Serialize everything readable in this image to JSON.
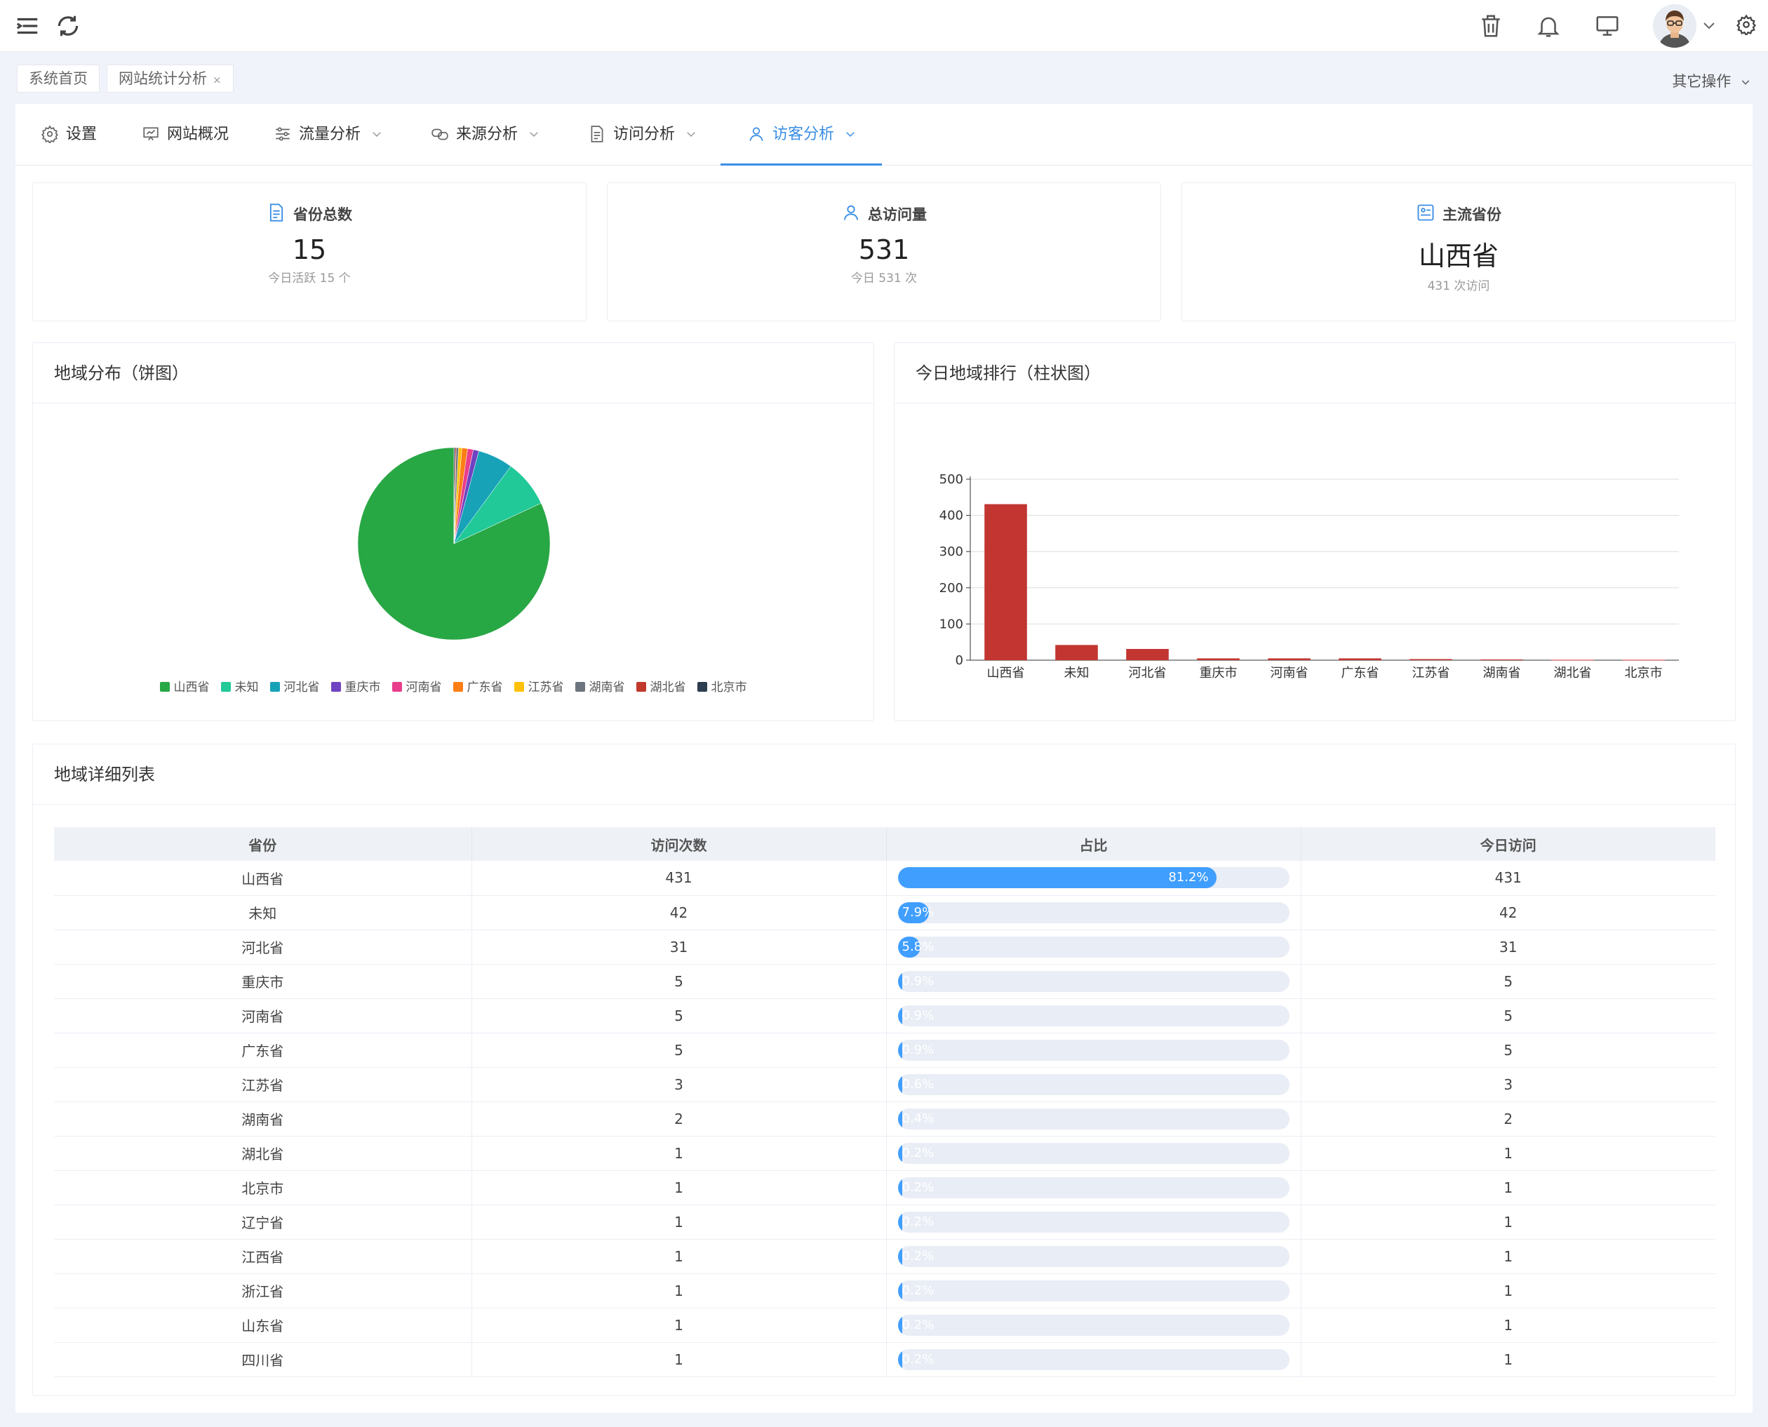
{
  "header": {
    "icons": [
      "menu-fold-icon",
      "refresh-icon",
      "trash-icon",
      "bell-icon",
      "monitor-icon",
      "avatar",
      "chevron-down-icon",
      "gear-icon"
    ]
  },
  "tags": {
    "home": "系统首页",
    "current": "网站统计分析",
    "close": "×",
    "other_ops": "其它操作"
  },
  "tabs": [
    {
      "label": "设置",
      "icon": "gear-icon"
    },
    {
      "label": "网站概况",
      "icon": "presentation-icon"
    },
    {
      "label": "流量分析",
      "icon": "sliders-icon"
    },
    {
      "label": "来源分析",
      "icon": "link-icon"
    },
    {
      "label": "访问分析",
      "icon": "document-icon"
    },
    {
      "label": "访客分析",
      "icon": "user-icon",
      "active": true
    }
  ],
  "stats": [
    {
      "title": "省份总数",
      "value": "15",
      "sub": "今日活跃 15 个",
      "icon": "document-icon"
    },
    {
      "title": "总访问量",
      "value": "531",
      "sub": "今日 531 次",
      "icon": "user-icon"
    },
    {
      "title": "主流省份",
      "value": "山西省",
      "sub": "431 次访问",
      "icon": "id-card-icon"
    }
  ],
  "pie_card": {
    "title": "地域分布（饼图）"
  },
  "bar_card": {
    "title": "今日地域排行（柱状图）"
  },
  "table_card": {
    "title": "地域详细列表",
    "columns": [
      "省份",
      "访问次数",
      "占比",
      "今日访问"
    ],
    "rows": [
      {
        "province": "山西省",
        "visits": "431",
        "pct": "81.2%",
        "ratio": 0.812,
        "today": "431"
      },
      {
        "province": "未知",
        "visits": "42",
        "pct": "7.9%",
        "ratio": 0.079,
        "today": "42"
      },
      {
        "province": "河北省",
        "visits": "31",
        "pct": "5.8%",
        "ratio": 0.058,
        "today": "31"
      },
      {
        "province": "重庆市",
        "visits": "5",
        "pct": "0.9%",
        "ratio": 0.009,
        "today": "5"
      },
      {
        "province": "河南省",
        "visits": "5",
        "pct": "0.9%",
        "ratio": 0.009,
        "today": "5"
      },
      {
        "province": "广东省",
        "visits": "5",
        "pct": "0.9%",
        "ratio": 0.009,
        "today": "5"
      },
      {
        "province": "江苏省",
        "visits": "3",
        "pct": "0.6%",
        "ratio": 0.006,
        "today": "3"
      },
      {
        "province": "湖南省",
        "visits": "2",
        "pct": "0.4%",
        "ratio": 0.004,
        "today": "2"
      },
      {
        "province": "湖北省",
        "visits": "1",
        "pct": "0.2%",
        "ratio": 0.002,
        "today": "1"
      },
      {
        "province": "北京市",
        "visits": "1",
        "pct": "0.2%",
        "ratio": 0.002,
        "today": "1"
      },
      {
        "province": "辽宁省",
        "visits": "1",
        "pct": "0.2%",
        "ratio": 0.002,
        "today": "1"
      },
      {
        "province": "江西省",
        "visits": "1",
        "pct": "0.2%",
        "ratio": 0.002,
        "today": "1"
      },
      {
        "province": "浙江省",
        "visits": "1",
        "pct": "0.2%",
        "ratio": 0.002,
        "today": "1"
      },
      {
        "province": "山东省",
        "visits": "1",
        "pct": "0.2%",
        "ratio": 0.002,
        "today": "1"
      },
      {
        "province": "四川省",
        "visits": "1",
        "pct": "0.2%",
        "ratio": 0.002,
        "today": "1"
      }
    ]
  },
  "chart_data": [
    {
      "type": "pie",
      "title": "",
      "categories": [
        "山西省",
        "未知",
        "河北省",
        "重庆市",
        "河南省",
        "广东省",
        "江苏省",
        "湖南省",
        "湖北省",
        "北京市"
      ],
      "values": [
        431,
        42,
        31,
        5,
        5,
        5,
        3,
        2,
        1,
        1
      ],
      "colors": [
        "#28a745",
        "#20c997",
        "#17a2b8",
        "#6f42c1",
        "#e83e8c",
        "#fd7e14",
        "#ffc107",
        "#6c757d",
        "#c0392b",
        "#2c3e50"
      ],
      "legend": "bottom"
    },
    {
      "type": "bar",
      "title": "",
      "categories": [
        "山西省",
        "未知",
        "河北省",
        "重庆市",
        "河南省",
        "广东省",
        "江苏省",
        "湖南省",
        "湖北省",
        "北京市"
      ],
      "values": [
        431,
        42,
        31,
        5,
        5,
        5,
        3,
        2,
        1,
        1
      ],
      "yticks": [
        0,
        100,
        200,
        300,
        400,
        500
      ],
      "ylim": [
        0,
        500
      ],
      "color": "#c23531",
      "grid": true
    }
  ]
}
